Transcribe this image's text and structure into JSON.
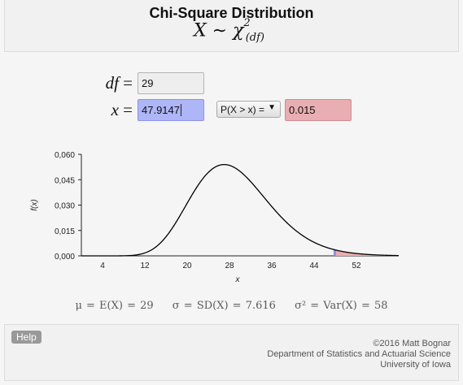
{
  "header": {
    "title": "Chi-Square Distribution"
  },
  "inputs": {
    "df_label": "df",
    "df_value": "29",
    "x_label": "x",
    "x_value": "47.9147",
    "prob_type": "P(X > x) =",
    "prob_value": "0.015"
  },
  "stats": {
    "mean": "μ = E(X) = 29",
    "sd": "σ = SD(X) = 7.616",
    "var": "σ² = Var(X) = 58"
  },
  "footer": {
    "help_label": "Help",
    "credit_line1": "©2016 Matt Bognar",
    "credit_line2": "Department of Statistics and Actuarial Science",
    "credit_line3": "University of Iowa"
  },
  "colors": {
    "curve": "#000000",
    "tail_fill": "#e9aeb1",
    "x_marker": "#8b93e6"
  },
  "chart_data": {
    "type": "area",
    "distribution": "chi-square",
    "df": 29,
    "x_cutoff": 47.9147,
    "shaded_tail": "right",
    "xlabel": "x",
    "ylabel": "f(x)",
    "xlim": [
      0,
      60
    ],
    "ylim": [
      0,
      0.06
    ],
    "x_ticks": [
      4,
      12,
      20,
      28,
      36,
      44,
      52
    ],
    "y_ticks": [
      "0,000",
      "0,015",
      "0,030",
      "0,045",
      "0,060"
    ],
    "y_tick_values": [
      0,
      0.015,
      0.03,
      0.045,
      0.06
    ]
  }
}
